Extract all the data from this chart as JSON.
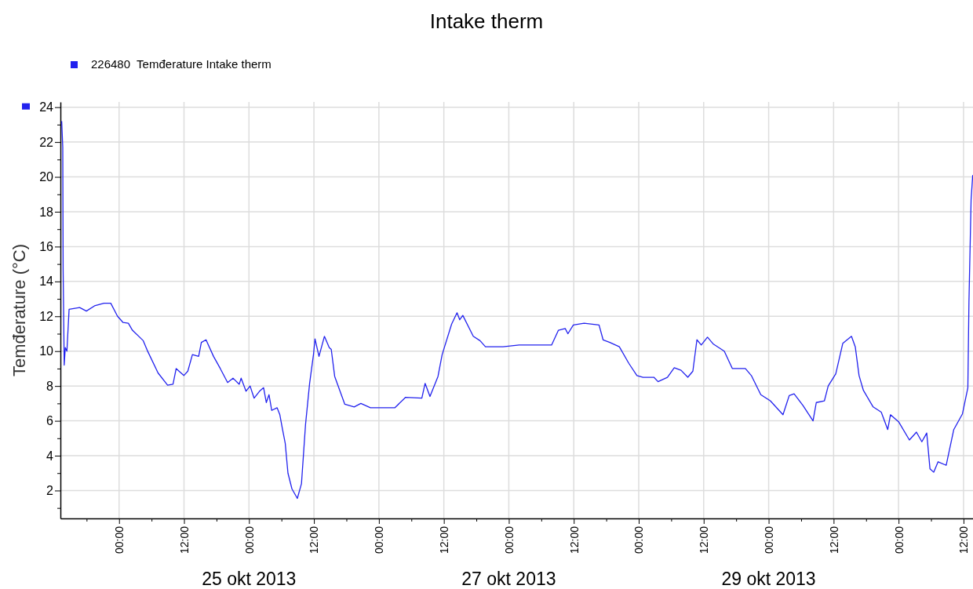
{
  "chart_data": {
    "type": "line",
    "title": "Intake therm",
    "ylabel": "Temđerature (°C)",
    "legend": "top left",
    "grid": true,
    "xlim": [
      "2013-10-23T13:10",
      "2013-10-30T13:45"
    ],
    "ylim": [
      0.4,
      24.3
    ],
    "xticks": [
      {
        "value": "2013-10-23T18:00",
        "label": null
      },
      {
        "value": "2013-10-24T00:00",
        "label": "00:00"
      },
      {
        "value": "2013-10-24T06:00",
        "label": null
      },
      {
        "value": "2013-10-24T12:00",
        "label": "12:00"
      },
      {
        "value": "2013-10-24T18:00",
        "label": null
      },
      {
        "value": "2013-10-25T00:00",
        "label": "00:00"
      },
      {
        "value": "2013-10-25T06:00",
        "label": null
      },
      {
        "value": "2013-10-25T12:00",
        "label": "12:00"
      },
      {
        "value": "2013-10-25T18:00",
        "label": null
      },
      {
        "value": "2013-10-26T00:00",
        "label": "00:00"
      },
      {
        "value": "2013-10-26T06:00",
        "label": null
      },
      {
        "value": "2013-10-26T12:00",
        "label": "12:00"
      },
      {
        "value": "2013-10-26T18:00",
        "label": null
      },
      {
        "value": "2013-10-27T00:00",
        "label": "00:00"
      },
      {
        "value": "2013-10-27T06:00",
        "label": null
      },
      {
        "value": "2013-10-27T12:00",
        "label": "12:00"
      },
      {
        "value": "2013-10-27T18:00",
        "label": null
      },
      {
        "value": "2013-10-28T00:00",
        "label": "00:00"
      },
      {
        "value": "2013-10-28T06:00",
        "label": null
      },
      {
        "value": "2013-10-28T12:00",
        "label": "12:00"
      },
      {
        "value": "2013-10-28T18:00",
        "label": null
      },
      {
        "value": "2013-10-29T00:00",
        "label": "00:00"
      },
      {
        "value": "2013-10-29T06:00",
        "label": null
      },
      {
        "value": "2013-10-29T12:00",
        "label": "12:00"
      },
      {
        "value": "2013-10-29T18:00",
        "label": null
      },
      {
        "value": "2013-10-30T00:00",
        "label": "00:00"
      },
      {
        "value": "2013-10-30T06:00",
        "label": null
      },
      {
        "value": "2013-10-30T12:00",
        "label": "12:00"
      }
    ],
    "yticks": [
      {
        "value": 1,
        "label": null
      },
      2,
      {
        "value": 3,
        "label": null
      },
      4,
      {
        "value": 5,
        "label": null
      },
      6,
      {
        "value": 7,
        "label": null
      },
      8,
      {
        "value": 9,
        "label": null
      },
      10,
      {
        "value": 11,
        "label": null
      },
      12,
      {
        "value": 13,
        "label": null
      },
      14,
      {
        "value": 15,
        "label": null
      },
      16,
      {
        "value": 17,
        "label": null
      },
      18,
      {
        "value": 19,
        "label": null
      },
      20,
      {
        "value": 21,
        "label": null
      },
      22,
      {
        "value": 23,
        "label": null
      },
      24
    ],
    "annotations": [
      "25 okt 2013",
      "27 okt 2013",
      "29 okt 2013"
    ],
    "series": [
      {
        "name": "226480  Temđerature Intake therm",
        "color": "#2222ee",
        "x": [
          "2013-10-23T13:24",
          "2013-10-23T13:36",
          "2013-10-23T13:40",
          "2013-10-23T13:52",
          "2013-10-23T14:04",
          "2013-10-23T14:22",
          "2013-10-23T14:46",
          "2013-10-23T16:43",
          "2013-10-23T17:58",
          "2013-10-23T19:28",
          "2013-10-23T21:13",
          "2013-10-23T22:28",
          "2013-10-23T23:43",
          "2013-10-24T00:43",
          "2013-10-24T01:43",
          "2013-10-24T02:28",
          "2013-10-24T04:28",
          "2013-10-24T05:12",
          "2013-10-24T07:12",
          "2013-10-24T08:58",
          "2013-10-24T09:58",
          "2013-10-24T10:33",
          "2013-10-24T11:58",
          "2013-10-24T12:42",
          "2013-10-24T13:33",
          "2013-10-24T14:42",
          "2013-10-24T15:12",
          "2013-10-24T16:04",
          "2013-10-24T17:27",
          "2013-10-24T18:42",
          "2013-10-24T20:03",
          "2013-10-24T21:03",
          "2013-10-24T22:12",
          "2013-10-24T22:33",
          "2013-10-24T23:27",
          "2013-10-25T00:12",
          "2013-10-25T00:57",
          "2013-10-25T01:57",
          "2013-10-25T02:42",
          "2013-10-25T03:12",
          "2013-10-25T03:42",
          "2013-10-25T04:12",
          "2013-10-25T05:12",
          "2013-10-25T05:42",
          "2013-10-25T06:12",
          "2013-10-25T06:42",
          "2013-10-25T07:12",
          "2013-10-25T07:56",
          "2013-10-25T08:56",
          "2013-10-25T09:42",
          "2013-10-25T10:27",
          "2013-10-25T11:12",
          "2013-10-25T11:56",
          "2013-10-25T12:12",
          "2013-10-25T12:56",
          "2013-10-25T13:56",
          "2013-10-25T14:50",
          "2013-10-25T15:12",
          "2013-10-25T15:50",
          "2013-10-25T17:42",
          "2013-10-25T19:26",
          "2013-10-25T20:40",
          "2013-10-25T22:26",
          "2013-10-26T02:56",
          "2013-10-26T04:56",
          "2013-10-26T07:56",
          "2013-10-26T08:32",
          "2013-10-26T09:26",
          "2013-10-26T10:55",
          "2013-10-26T11:41",
          "2013-10-26T13:26",
          "2013-10-26T14:26",
          "2013-10-26T14:56",
          "2013-10-26T15:30",
          "2013-10-26T17:26",
          "2013-10-26T18:41",
          "2013-10-26T19:41",
          "2013-10-26T22:56",
          "2013-10-27T01:54",
          "2013-10-27T07:54",
          "2013-10-27T09:10",
          "2013-10-27T10:25",
          "2013-10-27T10:55",
          "2013-10-27T11:55",
          "2013-10-27T13:55",
          "2013-10-27T16:40",
          "2013-10-27T17:25",
          "2013-10-27T18:40",
          "2013-10-27T20:25",
          "2013-10-27T22:10",
          "2013-10-27T23:40",
          "2013-10-28T00:48",
          "2013-10-28T02:48",
          "2013-10-28T03:34",
          "2013-10-28T05:18",
          "2013-10-28T06:34",
          "2013-10-28T07:49",
          "2013-10-28T09:04",
          "2013-10-28T10:00",
          "2013-10-28T10:45",
          "2013-10-28T11:33",
          "2013-10-28T12:42",
          "2013-10-28T13:48",
          "2013-10-28T15:48",
          "2013-10-28T17:18",
          "2013-10-28T19:42",
          "2013-10-28T20:48",
          "2013-10-28T22:33",
          "2013-10-29T00:18",
          "2013-10-29T02:39",
          "2013-10-29T03:48",
          "2013-10-29T04:42",
          "2013-10-29T06:18",
          "2013-10-29T08:12",
          "2013-10-29T08:48",
          "2013-10-29T10:18",
          "2013-10-29T11:00",
          "2013-10-29T12:24",
          "2013-10-29T13:42",
          "2013-10-29T15:18",
          "2013-10-29T16:00",
          "2013-10-29T16:42",
          "2013-10-29T17:30",
          "2013-10-29T19:18",
          "2013-10-29T20:48",
          "2013-10-29T22:00",
          "2013-10-29T22:30",
          "2013-10-30T00:00",
          "2013-10-30T02:00",
          "2013-10-30T03:18",
          "2013-10-30T04:18",
          "2013-10-30T05:12",
          "2013-10-30T05:48",
          "2013-10-30T06:30",
          "2013-10-30T07:18",
          "2013-10-30T08:48",
          "2013-10-30T10:12",
          "2013-10-30T11:48",
          "2013-10-30T12:48",
          "2013-10-30T13:00",
          "2013-10-30T13:24",
          "2013-10-30T13:42"
        ],
        "values": [
          23.2,
          21.7,
          14.7,
          9.2,
          10.2,
          10.0,
          12.4,
          12.5,
          12.3,
          12.6,
          12.75,
          12.75,
          12.0,
          11.65,
          11.6,
          11.2,
          10.6,
          10.05,
          8.75,
          8.05,
          8.1,
          9.0,
          8.6,
          8.85,
          9.8,
          9.7,
          10.5,
          10.65,
          9.7,
          9.0,
          8.2,
          8.45,
          8.1,
          8.45,
          7.7,
          8.0,
          7.3,
          7.7,
          7.9,
          7.05,
          7.5,
          6.6,
          6.75,
          6.35,
          5.5,
          4.7,
          3.0,
          2.1,
          1.55,
          2.4,
          5.8,
          8.15,
          9.85,
          10.7,
          9.7,
          10.85,
          10.2,
          10.1,
          8.55,
          6.95,
          6.8,
          7.0,
          6.75,
          6.75,
          7.35,
          7.3,
          8.15,
          7.4,
          8.55,
          9.8,
          11.55,
          12.2,
          11.8,
          12.05,
          10.85,
          10.6,
          10.25,
          10.25,
          10.35,
          10.35,
          11.2,
          11.3,
          11.0,
          11.5,
          11.6,
          11.5,
          10.65,
          10.5,
          10.25,
          9.3,
          8.6,
          8.5,
          8.5,
          8.25,
          8.5,
          9.05,
          8.9,
          8.5,
          8.85,
          10.65,
          10.35,
          10.8,
          10.4,
          10.0,
          9.0,
          9.0,
          8.6,
          7.5,
          7.15,
          6.35,
          7.45,
          7.55,
          6.9,
          6.0,
          7.05,
          7.15,
          8.0,
          8.7,
          10.45,
          10.85,
          10.25,
          8.6,
          7.75,
          6.8,
          6.5,
          5.5,
          6.35,
          5.95,
          4.9,
          5.35,
          4.8,
          5.3,
          3.25,
          3.05,
          3.65,
          3.45,
          5.5,
          6.4,
          7.9,
          12.8,
          18.7,
          20.1
        ]
      }
    ]
  }
}
